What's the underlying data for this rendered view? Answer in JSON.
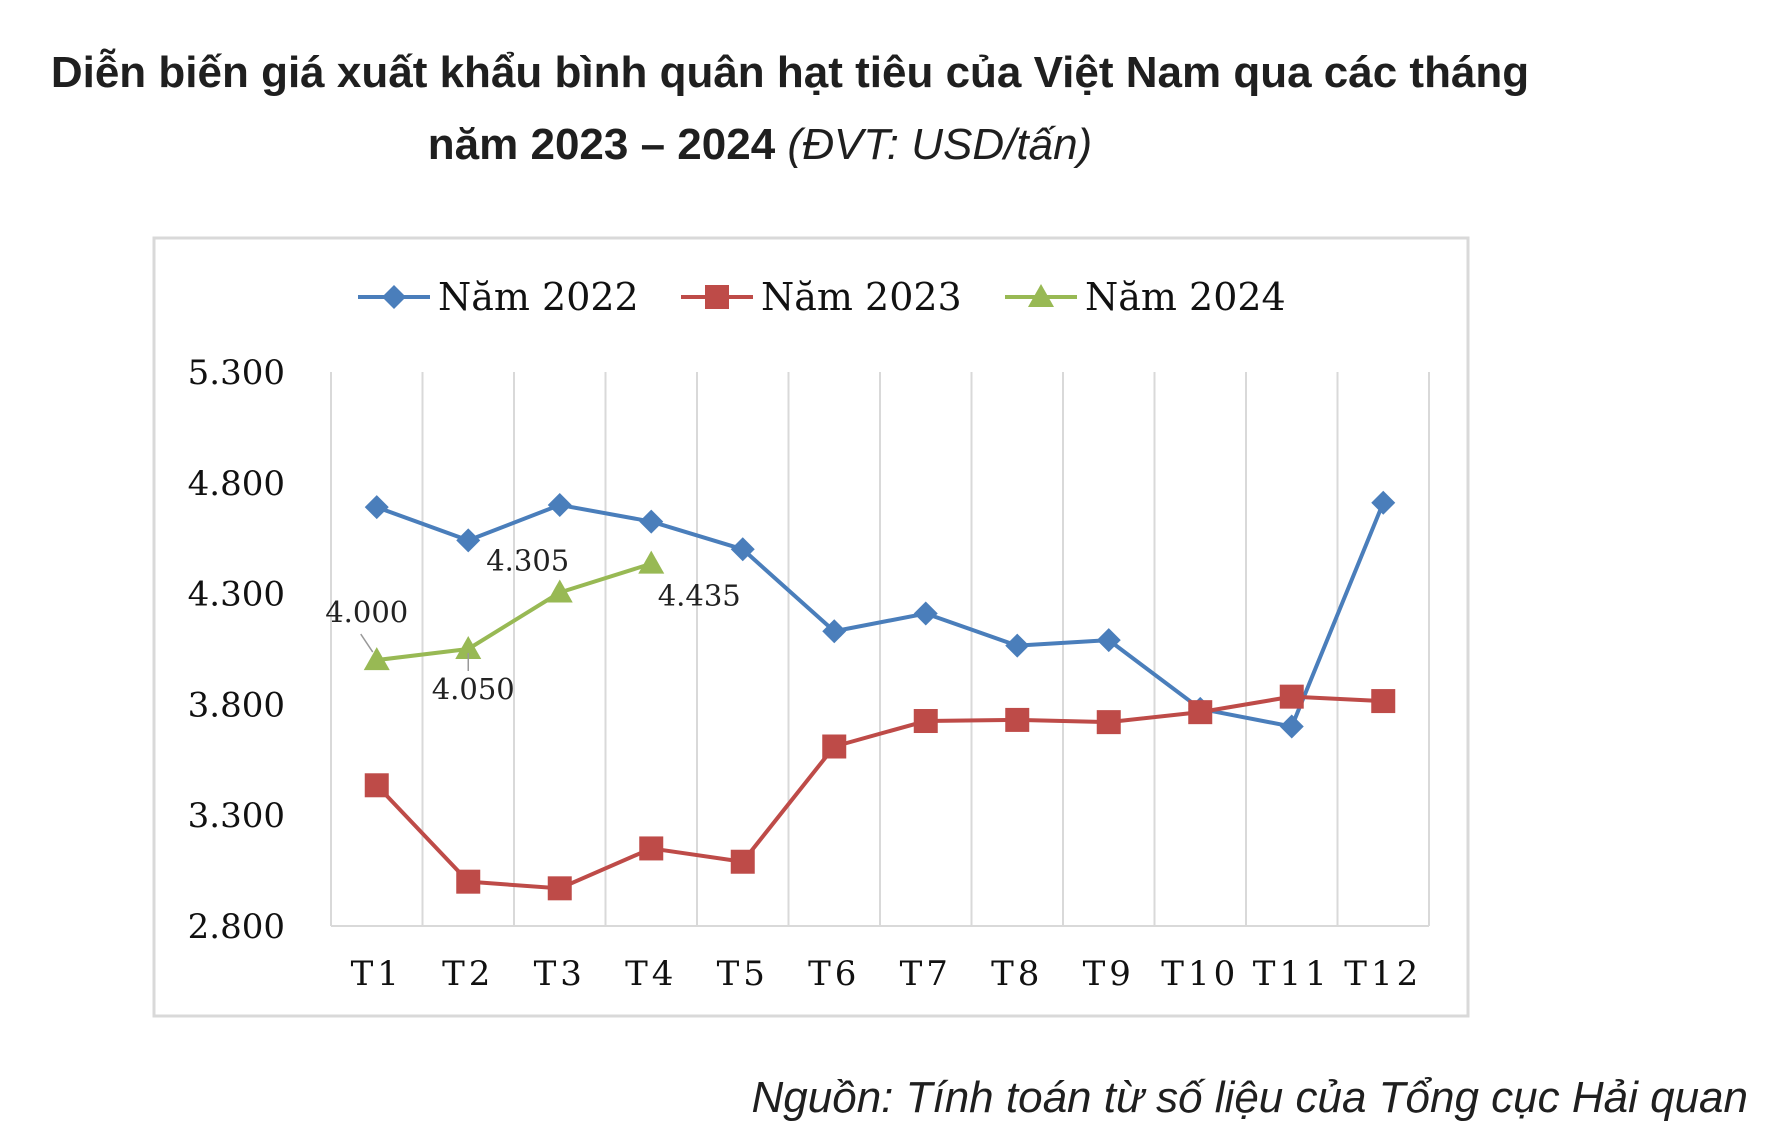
{
  "title": {
    "line1": "Diễn biến giá xuất khẩu bình quân hạt tiêu của Việt Nam qua các tháng",
    "line2": "năm 2023 – 2024",
    "unit": "(ĐVT: USD/tấn)"
  },
  "source": "Nguồn: Tính toán từ số liệu của Tổng cục Hải quan",
  "colors": {
    "s2022": "#4a7ebb",
    "s2023": "#be4b48",
    "s2024": "#98b954"
  },
  "chart_data": {
    "type": "line",
    "title": "Diễn biến giá xuất khẩu bình quân hạt tiêu của Việt Nam qua các tháng năm 2023 – 2024 (ĐVT: USD/tấn)",
    "xlabel": "",
    "ylabel": "USD/tấn",
    "categories": [
      "T1",
      "T2",
      "T3",
      "T4",
      "T5",
      "T6",
      "T7",
      "T8",
      "T9",
      "T10",
      "T11",
      "T12"
    ],
    "yticks": [
      "2.800",
      "3.300",
      "3.800",
      "4.300",
      "4.800",
      "5.300"
    ],
    "ylim": [
      2800,
      5300
    ],
    "grid": "vertical",
    "legend_position": "top",
    "series": [
      {
        "name": "Năm 2022",
        "marker": "diamond",
        "values": [
          4690,
          4540,
          4700,
          4625,
          4500,
          4130,
          4210,
          4065,
          4090,
          3780,
          3700,
          4710
        ]
      },
      {
        "name": "Năm 2023",
        "marker": "square",
        "values": [
          3435,
          3000,
          2970,
          3150,
          3090,
          3610,
          3725,
          3730,
          3720,
          3765,
          3835,
          3815
        ]
      },
      {
        "name": "Năm 2024",
        "marker": "triangle",
        "values": [
          4000,
          4050,
          4305,
          4435
        ]
      }
    ],
    "annotations": [
      "4.000",
      "4.050",
      "4.305",
      "4.435"
    ]
  }
}
